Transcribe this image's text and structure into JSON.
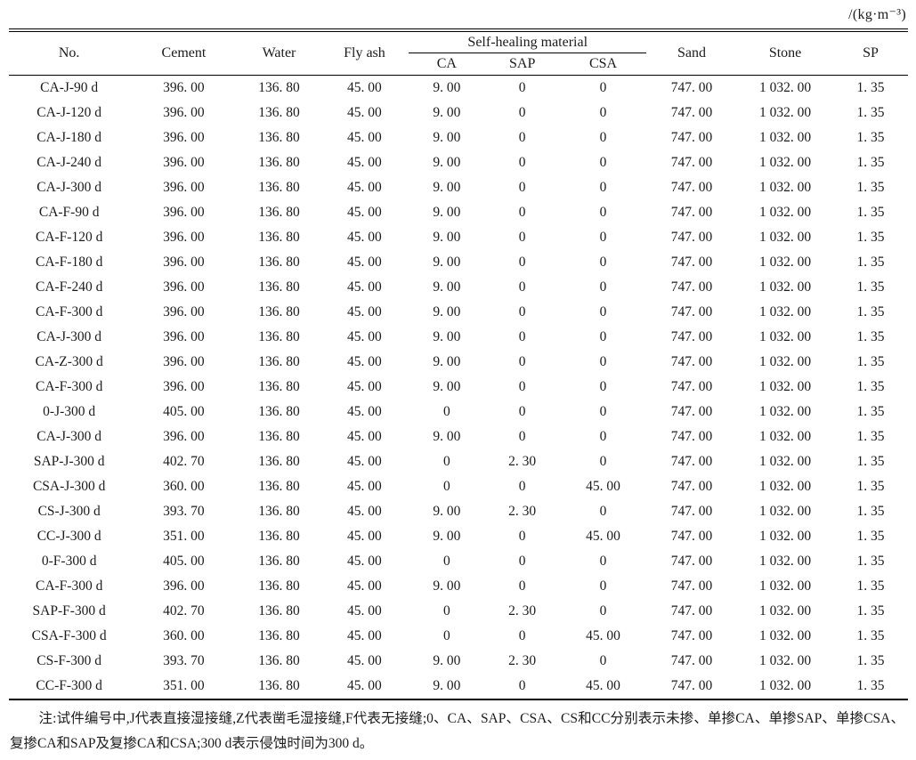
{
  "unit_label": "/(kg·m⁻³)",
  "table": {
    "headers": {
      "no": "No.",
      "cement": "Cement",
      "water": "Water",
      "fly_ash": "Fly ash",
      "self_healing": "Self-healing material",
      "ca": "CA",
      "sap": "SAP",
      "csa": "CSA",
      "sand": "Sand",
      "stone": "Stone",
      "sp": "SP"
    },
    "rows": [
      [
        "CA-J-90 d",
        "396. 00",
        "136. 80",
        "45. 00",
        "9. 00",
        "0",
        "0",
        "747. 00",
        "1 032. 00",
        "1. 35"
      ],
      [
        "CA-J-120 d",
        "396. 00",
        "136. 80",
        "45. 00",
        "9. 00",
        "0",
        "0",
        "747. 00",
        "1 032. 00",
        "1. 35"
      ],
      [
        "CA-J-180 d",
        "396. 00",
        "136. 80",
        "45. 00",
        "9. 00",
        "0",
        "0",
        "747. 00",
        "1 032. 00",
        "1. 35"
      ],
      [
        "CA-J-240 d",
        "396. 00",
        "136. 80",
        "45. 00",
        "9. 00",
        "0",
        "0",
        "747. 00",
        "1 032. 00",
        "1. 35"
      ],
      [
        "CA-J-300 d",
        "396. 00",
        "136. 80",
        "45. 00",
        "9. 00",
        "0",
        "0",
        "747. 00",
        "1 032. 00",
        "1. 35"
      ],
      [
        "CA-F-90 d",
        "396. 00",
        "136. 80",
        "45. 00",
        "9. 00",
        "0",
        "0",
        "747. 00",
        "1 032. 00",
        "1. 35"
      ],
      [
        "CA-F-120 d",
        "396. 00",
        "136. 80",
        "45. 00",
        "9. 00",
        "0",
        "0",
        "747. 00",
        "1 032. 00",
        "1. 35"
      ],
      [
        "CA-F-180 d",
        "396. 00",
        "136. 80",
        "45. 00",
        "9. 00",
        "0",
        "0",
        "747. 00",
        "1 032. 00",
        "1. 35"
      ],
      [
        "CA-F-240 d",
        "396. 00",
        "136. 80",
        "45. 00",
        "9. 00",
        "0",
        "0",
        "747. 00",
        "1 032. 00",
        "1. 35"
      ],
      [
        "CA-F-300 d",
        "396. 00",
        "136. 80",
        "45. 00",
        "9. 00",
        "0",
        "0",
        "747. 00",
        "1 032. 00",
        "1. 35"
      ],
      [
        "CA-J-300 d",
        "396. 00",
        "136. 80",
        "45. 00",
        "9. 00",
        "0",
        "0",
        "747. 00",
        "1 032. 00",
        "1. 35"
      ],
      [
        "CA-Z-300 d",
        "396. 00",
        "136. 80",
        "45. 00",
        "9. 00",
        "0",
        "0",
        "747. 00",
        "1 032. 00",
        "1. 35"
      ],
      [
        "CA-F-300 d",
        "396. 00",
        "136. 80",
        "45. 00",
        "9. 00",
        "0",
        "0",
        "747. 00",
        "1 032. 00",
        "1. 35"
      ],
      [
        "0-J-300 d",
        "405. 00",
        "136. 80",
        "45. 00",
        "0",
        "0",
        "0",
        "747. 00",
        "1 032. 00",
        "1. 35"
      ],
      [
        "CA-J-300 d",
        "396. 00",
        "136. 80",
        "45. 00",
        "9. 00",
        "0",
        "0",
        "747. 00",
        "1 032. 00",
        "1. 35"
      ],
      [
        "SAP-J-300 d",
        "402. 70",
        "136. 80",
        "45. 00",
        "0",
        "2. 30",
        "0",
        "747. 00",
        "1 032. 00",
        "1. 35"
      ],
      [
        "CSA-J-300 d",
        "360. 00",
        "136. 80",
        "45. 00",
        "0",
        "0",
        "45. 00",
        "747. 00",
        "1 032. 00",
        "1. 35"
      ],
      [
        "CS-J-300 d",
        "393. 70",
        "136. 80",
        "45. 00",
        "9. 00",
        "2. 30",
        "0",
        "747. 00",
        "1 032. 00",
        "1. 35"
      ],
      [
        "CC-J-300 d",
        "351. 00",
        "136. 80",
        "45. 00",
        "9. 00",
        "0",
        "45. 00",
        "747. 00",
        "1 032. 00",
        "1. 35"
      ],
      [
        "0-F-300 d",
        "405. 00",
        "136. 80",
        "45. 00",
        "0",
        "0",
        "0",
        "747. 00",
        "1 032. 00",
        "1. 35"
      ],
      [
        "CA-F-300 d",
        "396. 00",
        "136. 80",
        "45. 00",
        "9. 00",
        "0",
        "0",
        "747. 00",
        "1 032. 00",
        "1. 35"
      ],
      [
        "SAP-F-300 d",
        "402. 70",
        "136. 80",
        "45. 00",
        "0",
        "2. 30",
        "0",
        "747. 00",
        "1 032. 00",
        "1. 35"
      ],
      [
        "CSA-F-300 d",
        "360. 00",
        "136. 80",
        "45. 00",
        "0",
        "0",
        "45. 00",
        "747. 00",
        "1 032. 00",
        "1. 35"
      ],
      [
        "CS-F-300 d",
        "393. 70",
        "136. 80",
        "45. 00",
        "9. 00",
        "2. 30",
        "0",
        "747. 00",
        "1 032. 00",
        "1. 35"
      ],
      [
        "CC-F-300 d",
        "351. 00",
        "136. 80",
        "45. 00",
        "9. 00",
        "0",
        "45. 00",
        "747. 00",
        "1 032. 00",
        "1. 35"
      ]
    ]
  },
  "footnote": "注:试件编号中,J代表直接湿接缝,Z代表凿毛湿接缝,F代表无接缝;0、CA、SAP、CSA、CS和CC分别表示未掺、单掺CA、单掺SAP、单掺CSA、复掺CA和SAP及复掺CA和CSA;300 d表示侵蚀时间为300 d。"
}
